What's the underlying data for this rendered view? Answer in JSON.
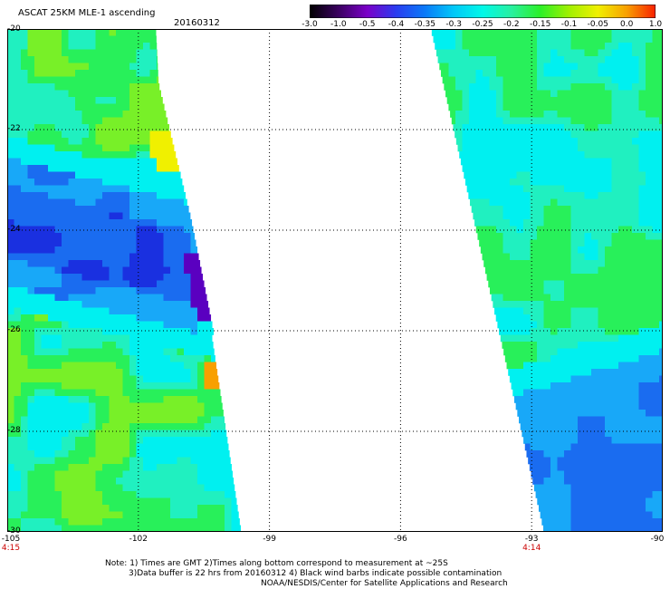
{
  "header": {
    "title": "ASCAT 25KM MLE-1 ascending",
    "date": "20160312"
  },
  "colorbar": {
    "labels": [
      "-3.0",
      "-1.0",
      "-0.5",
      "-0.4",
      "-0.35",
      "-0.3",
      "-0.25",
      "-0.2",
      "-0.15",
      "-0.1",
      "-0.05",
      "0.0",
      "1.0"
    ],
    "colors": [
      "#000000",
      "#3a0060",
      "#7a00c8",
      "#2a3cf0",
      "#0a7af8",
      "#00c8f8",
      "#00f8e8",
      "#28f0a0",
      "#2cf028",
      "#a0f000",
      "#f0f000",
      "#f8a000",
      "#f82000"
    ]
  },
  "map": {
    "y_axis_labels": [
      "-20",
      "-22",
      "-24",
      "-26",
      "-28",
      "-30"
    ],
    "x_axis_labels": [
      "-105",
      "-102",
      "-99",
      "-96",
      "-93",
      "-90"
    ],
    "pass_times": [
      {
        "lon": "-105",
        "time": "4:15"
      },
      {
        "lon": "-93",
        "time": "4:14"
      }
    ],
    "palette": {
      "deep_blue": "#1a30e0",
      "blue": "#1a6cf0",
      "light_blue": "#18a8f8",
      "cyan": "#00f0f0",
      "aqua": "#20f0c0",
      "green": "#28f05a",
      "lime": "#78f028",
      "yellow": "#f0f000",
      "orange": "#f8a000",
      "purple": "#5a00c0"
    }
  },
  "notes": {
    "line1": "Note: 1) Times are GMT 2)Times along bottom correspond to measurement at ~25S",
    "line2": "3)Data buffer is 22 hrs from 20160312 4) Black wind barbs indicate possible contamination",
    "line3": "NOAA/NESDIS/Center for Satellite Applications and Research"
  }
}
